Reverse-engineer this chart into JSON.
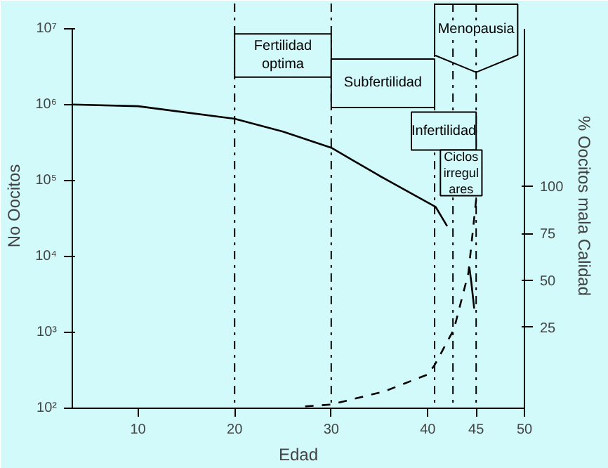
{
  "chart_data": {
    "type": "line",
    "xlabel": "Edad",
    "ylabel": "No Oocitos",
    "y2label": "% Oocitos mala Calidad",
    "xlim": [
      3.2,
      50
    ],
    "xticks": [
      10,
      20,
      30,
      40,
      45,
      50
    ],
    "ylim": [
      100,
      10000000
    ],
    "log": "y",
    "yticks": [
      {
        "value": 100,
        "label": "10²"
      },
      {
        "value": 1000,
        "label": "10³"
      },
      {
        "value": 10000,
        "label": "10⁴"
      },
      {
        "value": 100000,
        "label": "10⁵"
      },
      {
        "value": 1000000,
        "label": "10⁶"
      },
      {
        "value": 10000000,
        "label": "10⁷"
      }
    ],
    "y2lim": [
      -18,
      184
    ],
    "y2ticks": [
      25,
      50,
      75,
      100
    ],
    "grid": false,
    "series": [
      {
        "color": "#000000",
        "line_style": "solid",
        "x": [
          3.2,
          10,
          20,
          25,
          30,
          35,
          40.8,
          42.0
        ],
        "values": [
          1000000,
          950000,
          650000,
          440000,
          270000,
          115000,
          45000,
          25000
        ]
      },
      {
        "color": "#000000",
        "line_style": "dashed",
        "axis": "y2",
        "x": [
          27.3,
          30,
          35.5,
          40,
          40.7,
          42.7,
          44.2,
          45
        ],
        "values": [
          -17,
          -16,
          -9,
          0,
          5,
          24,
          54,
          93
        ]
      },
      {
        "color": "#000000",
        "line_style": "solid",
        "axis": "y2",
        "x": [
          44.3,
          44.5,
          44.8
        ],
        "values": [
          57,
          49,
          35
        ]
      }
    ],
    "ref_lines": [
      {
        "axis": "x",
        "value": 20,
        "color": "#000000",
        "line_style": "dashdot"
      },
      {
        "axis": "x",
        "value": 30,
        "color": "#000000",
        "line_style": "dashdot"
      },
      {
        "axis": "x",
        "value": 40.7,
        "color": "#000000",
        "line_style": "dashdot"
      },
      {
        "axis": "x",
        "value": 42.6,
        "color": "#000000",
        "line_style": "dashdot"
      },
      {
        "axis": "x",
        "value": 45,
        "color": "#000000",
        "line_style": "dashdot"
      }
    ],
    "annotations": [
      "Fertilidad\noptima",
      "Subfertilidad",
      "Infertilidad",
      "Ciclos\nirregul\nares",
      "Menopausia"
    ]
  }
}
